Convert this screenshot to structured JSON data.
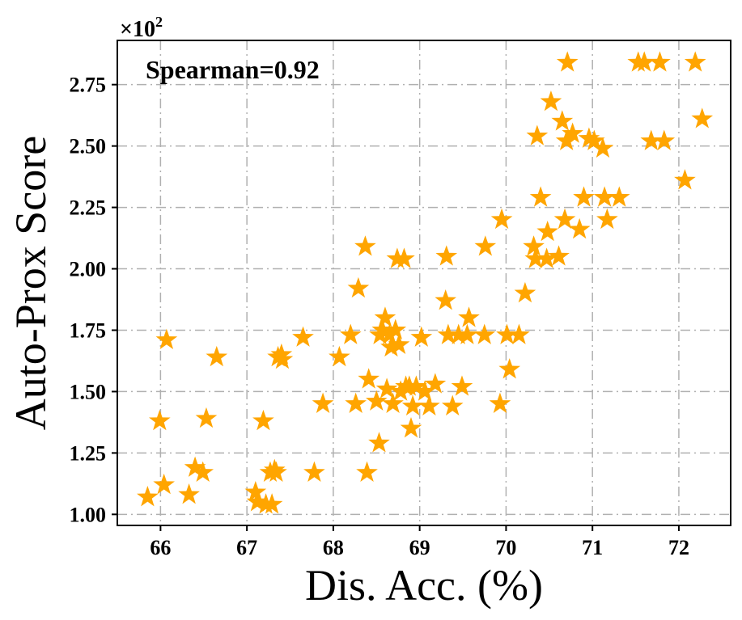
{
  "chart_data": {
    "type": "scatter",
    "title": "",
    "xlabel": "Dis. Acc. (%)",
    "ylabel": "Auto-Prox Score",
    "annotation": "Spearman=0.92",
    "y_multiplier": "×10",
    "y_multiplier_exp": "2",
    "xlim": [
      65.5,
      72.6
    ],
    "ylim": [
      0.955,
      2.93
    ],
    "x_ticks": [
      66,
      67,
      68,
      69,
      70,
      71,
      72
    ],
    "x_tick_labels": [
      "66",
      "67",
      "68",
      "69",
      "70",
      "71",
      "72"
    ],
    "y_ticks": [
      1.0,
      1.25,
      1.5,
      1.75,
      2.0,
      2.25,
      2.5,
      2.75
    ],
    "y_tick_labels": [
      "1.00",
      "1.25",
      "1.50",
      "1.75",
      "2.00",
      "2.25",
      "2.50",
      "2.75"
    ],
    "grid": true,
    "marker": "star",
    "color": "#FFA500",
    "points": [
      [
        65.85,
        1.07
      ],
      [
        65.99,
        1.38
      ],
      [
        66.04,
        1.12
      ],
      [
        66.07,
        1.71
      ],
      [
        66.33,
        1.08
      ],
      [
        66.4,
        1.19
      ],
      [
        66.49,
        1.17
      ],
      [
        66.53,
        1.39
      ],
      [
        66.65,
        1.64
      ],
      [
        67.1,
        1.09
      ],
      [
        67.12,
        1.05
      ],
      [
        67.19,
        1.38
      ],
      [
        67.22,
        1.04
      ],
      [
        67.27,
        1.17
      ],
      [
        67.29,
        1.04
      ],
      [
        67.32,
        1.18
      ],
      [
        67.34,
        1.17
      ],
      [
        67.36,
        1.64
      ],
      [
        67.4,
        1.65
      ],
      [
        67.41,
        1.63
      ],
      [
        67.65,
        1.72
      ],
      [
        67.78,
        1.17
      ],
      [
        67.88,
        1.45
      ],
      [
        68.07,
        1.64
      ],
      [
        68.2,
        1.73
      ],
      [
        68.26,
        1.45
      ],
      [
        68.29,
        1.92
      ],
      [
        68.37,
        2.09
      ],
      [
        68.39,
        1.17
      ],
      [
        68.41,
        1.55
      ],
      [
        68.5,
        1.46
      ],
      [
        68.53,
        1.29
      ],
      [
        68.54,
        1.73
      ],
      [
        68.57,
        1.75
      ],
      [
        68.6,
        1.8
      ],
      [
        68.62,
        1.51
      ],
      [
        68.65,
        1.73
      ],
      [
        68.67,
        1.68
      ],
      [
        68.69,
        1.45
      ],
      [
        68.72,
        1.75
      ],
      [
        68.74,
        2.04
      ],
      [
        68.76,
        1.69
      ],
      [
        68.78,
        1.5
      ],
      [
        68.82,
        2.04
      ],
      [
        68.84,
        1.52
      ],
      [
        68.88,
        1.52
      ],
      [
        68.9,
        1.35
      ],
      [
        68.92,
        1.44
      ],
      [
        68.96,
        1.52
      ],
      [
        69.02,
        1.72
      ],
      [
        69.06,
        1.5
      ],
      [
        69.11,
        1.44
      ],
      [
        69.18,
        1.53
      ],
      [
        69.3,
        1.87
      ],
      [
        69.31,
        2.05
      ],
      [
        69.33,
        1.73
      ],
      [
        69.38,
        1.44
      ],
      [
        69.45,
        1.73
      ],
      [
        69.49,
        1.52
      ],
      [
        69.55,
        1.73
      ],
      [
        69.57,
        1.8
      ],
      [
        69.75,
        1.73
      ],
      [
        69.76,
        2.09
      ],
      [
        69.93,
        1.45
      ],
      [
        69.95,
        2.2
      ],
      [
        70.01,
        1.73
      ],
      [
        70.04,
        1.59
      ],
      [
        70.15,
        1.73
      ],
      [
        70.22,
        1.9
      ],
      [
        70.32,
        2.09
      ],
      [
        70.34,
        2.04
      ],
      [
        70.36,
        2.54
      ],
      [
        70.4,
        2.29
      ],
      [
        70.47,
        2.04
      ],
      [
        70.48,
        2.15
      ],
      [
        70.52,
        2.68
      ],
      [
        70.61,
        2.05
      ],
      [
        70.65,
        2.6
      ],
      [
        70.68,
        2.2
      ],
      [
        70.7,
        2.52
      ],
      [
        70.71,
        2.84
      ],
      [
        70.77,
        2.55
      ],
      [
        70.85,
        2.16
      ],
      [
        70.9,
        2.29
      ],
      [
        70.96,
        2.53
      ],
      [
        71.02,
        2.52
      ],
      [
        71.12,
        2.49
      ],
      [
        71.14,
        2.29
      ],
      [
        71.17,
        2.2
      ],
      [
        71.31,
        2.29
      ],
      [
        71.53,
        2.84
      ],
      [
        71.6,
        2.84
      ],
      [
        71.68,
        2.52
      ],
      [
        71.78,
        2.84
      ],
      [
        71.83,
        2.52
      ],
      [
        72.07,
        2.36
      ],
      [
        72.19,
        2.84
      ],
      [
        72.27,
        2.61
      ]
    ]
  }
}
